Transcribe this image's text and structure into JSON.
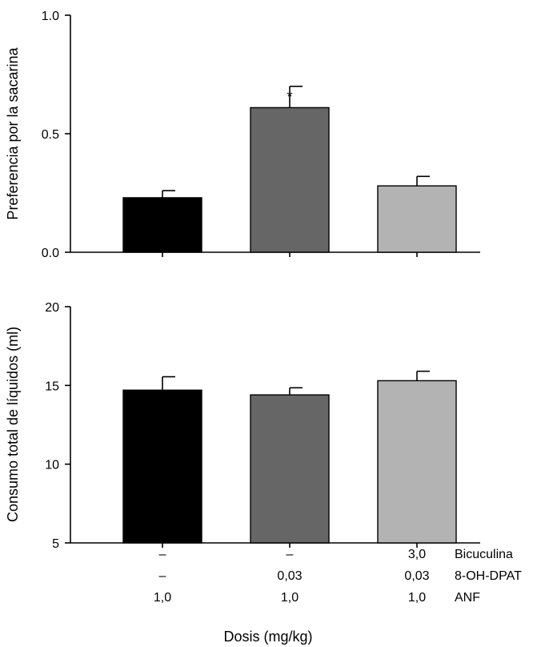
{
  "chart_data": [
    {
      "type": "bar",
      "ylabel": "Preferencia por la sacarina",
      "ylim": [
        0,
        1.0
      ],
      "yticks": [
        "0.0",
        "0.5",
        "1.0"
      ],
      "ytick_values": [
        0,
        0.5,
        1.0
      ],
      "categories": [
        "ANF 1,0",
        "ANF 1,0 + 8-OH-DPAT 0,03",
        "ANF 1,0 + 8-OH-DPAT 0,03 + Bicuculina 3,0"
      ],
      "values": [
        0.23,
        0.61,
        0.28
      ],
      "errors": [
        0.03,
        0.09,
        0.04
      ],
      "colors": [
        "#000000",
        "#666666",
        "#b3b3b3"
      ],
      "significance": [
        "",
        "*",
        ""
      ]
    },
    {
      "type": "bar",
      "ylabel": "Consumo total de líquidos (ml)",
      "ylim": [
        5,
        20
      ],
      "yticks": [
        "5",
        "10",
        "15",
        "20"
      ],
      "ytick_values": [
        5,
        10,
        15,
        20
      ],
      "categories": [
        "ANF 1,0",
        "ANF 1,0 + 8-OH-DPAT 0,03",
        "ANF 1,0 + 8-OH-DPAT 0,03 + Bicuculina 3,0"
      ],
      "values": [
        14.7,
        14.4,
        15.3
      ],
      "errors": [
        0.85,
        0.45,
        0.6
      ],
      "colors": [
        "#000000",
        "#666666",
        "#b3b3b3"
      ],
      "significance": [
        "",
        "",
        ""
      ]
    }
  ],
  "dose_table": {
    "rows": [
      {
        "drug": "Bicuculina",
        "values": [
          "–",
          "–",
          "3,0"
        ]
      },
      {
        "drug": "8-OH-DPAT",
        "values": [
          "–",
          "0,03",
          "0,03"
        ]
      },
      {
        "drug": "ANF",
        "values": [
          "1,0",
          "1,0",
          "1,0"
        ]
      }
    ]
  },
  "xlabel": "Dosis (mg/kg)"
}
